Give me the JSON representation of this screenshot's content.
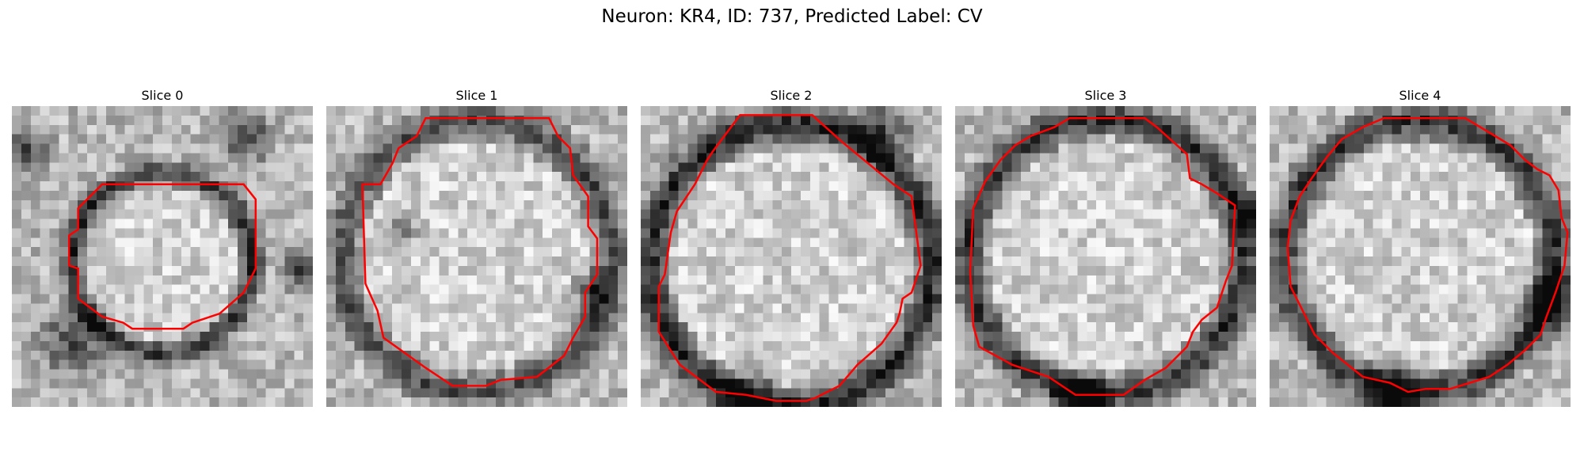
{
  "figure": {
    "suptitle": "Neuron: KR4, ID: 737, Predicted Label: CV"
  },
  "panels": [
    {
      "title": "Slice 0"
    },
    {
      "title": "Slice 1"
    },
    {
      "title": "Slice 2"
    },
    {
      "title": "Slice 3"
    },
    {
      "title": "Slice 4"
    }
  ],
  "colors": {
    "contour": "#ff0000",
    "colormap": "grayscale"
  }
}
